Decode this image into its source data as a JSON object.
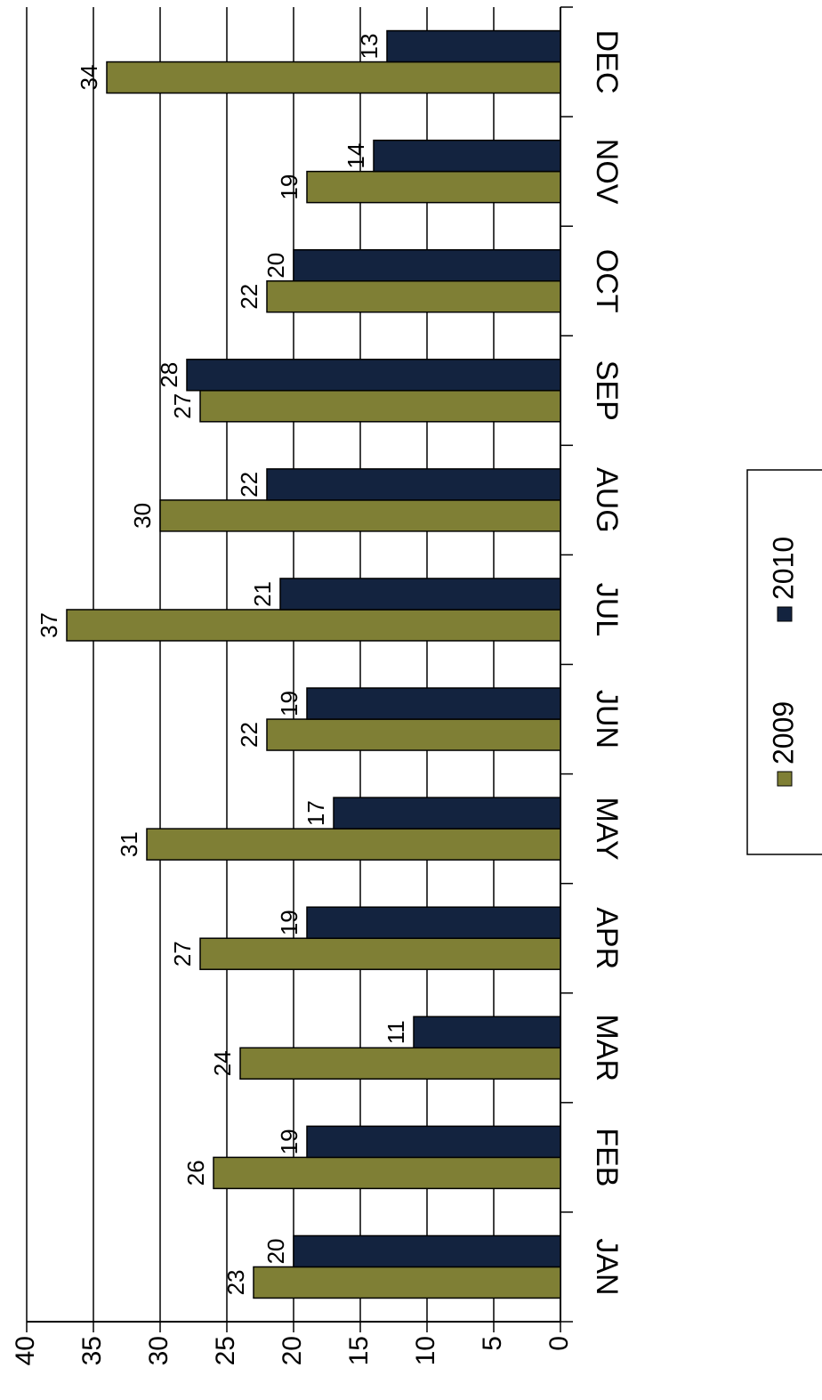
{
  "chart_data": {
    "type": "bar",
    "categories": [
      "JAN",
      "FEB",
      "MAR",
      "APR",
      "MAY",
      "JUN",
      "JUL",
      "AUG",
      "SEP",
      "OCT",
      "NOV",
      "DEC"
    ],
    "series": [
      {
        "name": "2009",
        "color": "#7f7f35",
        "values": [
          23,
          26,
          24,
          27,
          31,
          22,
          37,
          30,
          27,
          22,
          19,
          34
        ]
      },
      {
        "name": "2010",
        "color": "#13233f",
        "values": [
          20,
          19,
          11,
          19,
          17,
          19,
          21,
          22,
          28,
          20,
          14,
          13
        ]
      }
    ],
    "ylim": [
      0,
      40
    ],
    "yticks": [
      0,
      5,
      10,
      15,
      20,
      25,
      30,
      35,
      40
    ],
    "grid": true,
    "legend": "bottom"
  }
}
